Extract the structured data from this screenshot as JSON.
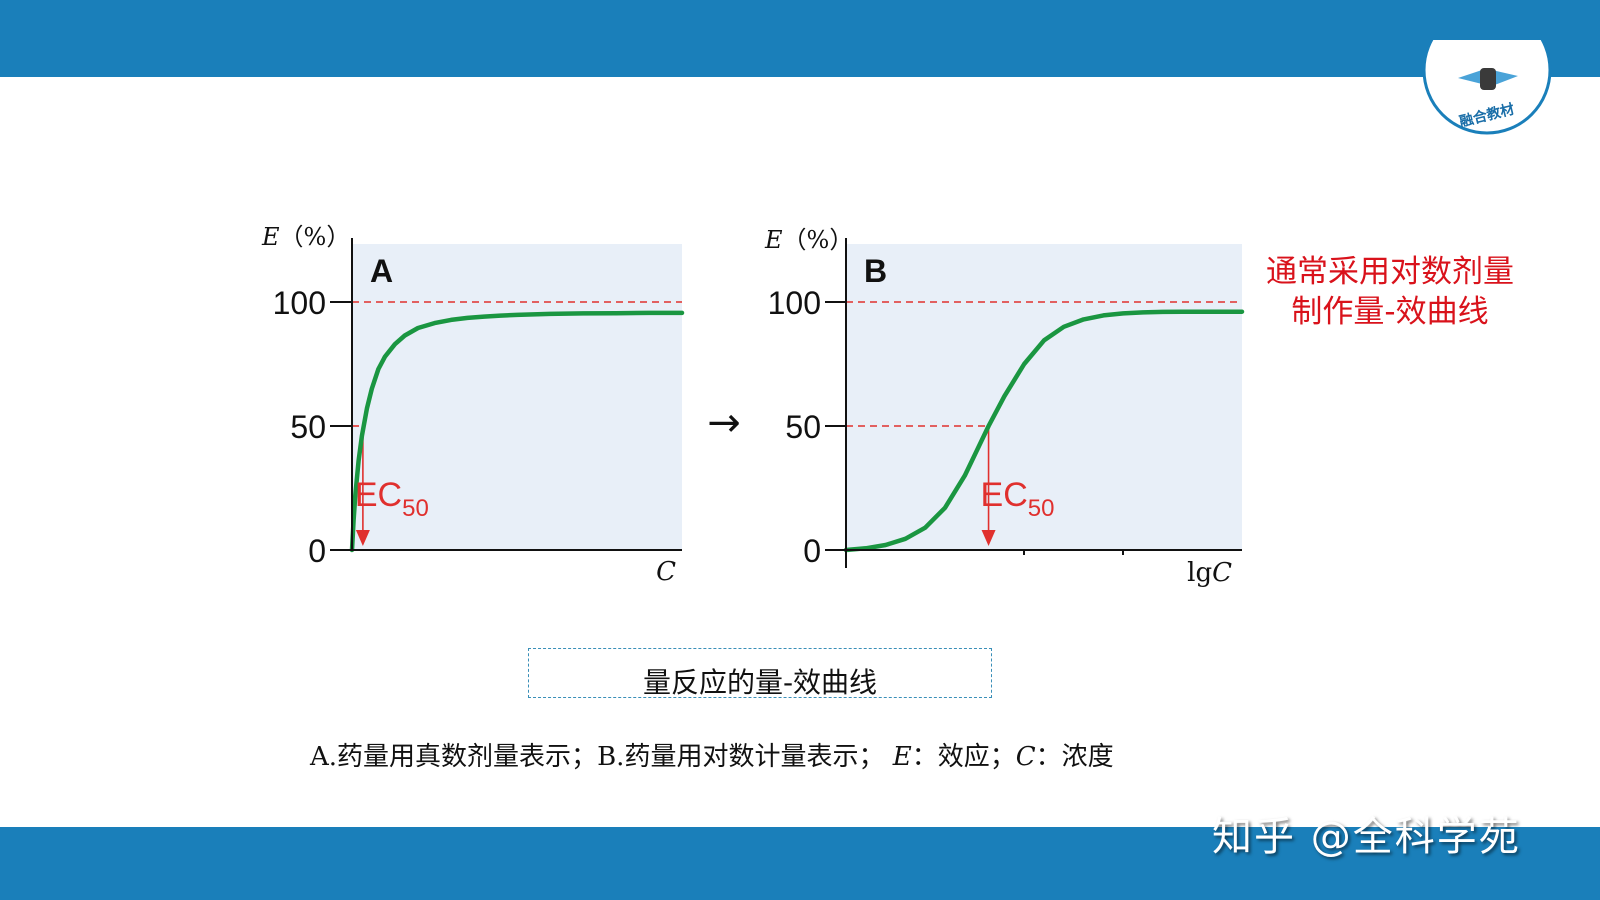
{
  "watermark": "知乎 @全科学苑",
  "logo": {
    "text": "融合教材",
    "icon": "book-hand-logo-icon"
  },
  "note": {
    "line1": "通常采用对数剂量",
    "line2": "制作量-效曲线"
  },
  "caption": "量反应的量-效曲线",
  "legend": {
    "a_prefix": "A.",
    "a_text": "药量用真数剂量表示；",
    "b_prefix": "B.",
    "b_text": "药量用对数计量表示；",
    "e_var": "E",
    "e_text": "：效应；",
    "c_var": "C",
    "c_text": "：浓度"
  },
  "arrow": "→",
  "colors": {
    "bar": "#1a7fba",
    "curve": "#1a9641",
    "ref": "#e0302e",
    "plot_bg": "#e8eff8",
    "note": "#d9121b"
  },
  "chart_data": [
    {
      "type": "line",
      "panel_label": "A",
      "ylabel": "E（%）",
      "xlabel": "C",
      "ylim": [
        0,
        100
      ],
      "yticks": [
        0,
        50,
        100
      ],
      "reference_lines": {
        "y": [
          100,
          50
        ]
      },
      "annotation": {
        "text": "EC",
        "sub": "50"
      },
      "series": [
        {
          "x": [
            0,
            0.05,
            0.1,
            0.2,
            0.3,
            0.45,
            0.6,
            0.8,
            1.0,
            1.3,
            1.6,
            2.0,
            2.5,
            3.0,
            3.5,
            4.0,
            4.5,
            5.0,
            6.0,
            7.0,
            8.0,
            9.0,
            10.0
          ],
          "y": [
            0,
            12,
            22,
            36,
            46,
            57,
            65,
            73,
            78,
            83,
            86.5,
            89.5,
            91.5,
            92.8,
            93.6,
            94.1,
            94.5,
            94.8,
            95.2,
            95.4,
            95.5,
            95.6,
            95.6
          ]
        }
      ],
      "ec50_x": 0.33
    },
    {
      "type": "line",
      "panel_label": "B",
      "ylabel": "E（%）",
      "xlabel": "lgC",
      "ylim": [
        0,
        100
      ],
      "yticks": [
        0,
        50,
        100
      ],
      "reference_lines": {
        "y": [
          100,
          50
        ]
      },
      "annotation": {
        "text": "EC",
        "sub": "50"
      },
      "series": [
        {
          "x": [
            0,
            0.5,
            1.0,
            1.5,
            2.0,
            2.5,
            3.0,
            3.3,
            3.6,
            4.0,
            4.5,
            5.0,
            5.5,
            6.0,
            6.5,
            7.0,
            7.5,
            8.0,
            8.5,
            9.0,
            9.5,
            10.0
          ],
          "y": [
            0,
            0.7,
            2,
            4.5,
            9,
            17,
            30,
            40,
            50,
            62,
            75,
            84.5,
            90,
            93,
            94.6,
            95.4,
            95.8,
            96,
            96.1,
            96.1,
            96.1,
            96.1
          ]
        }
      ],
      "ec50_x": 3.6
    }
  ]
}
